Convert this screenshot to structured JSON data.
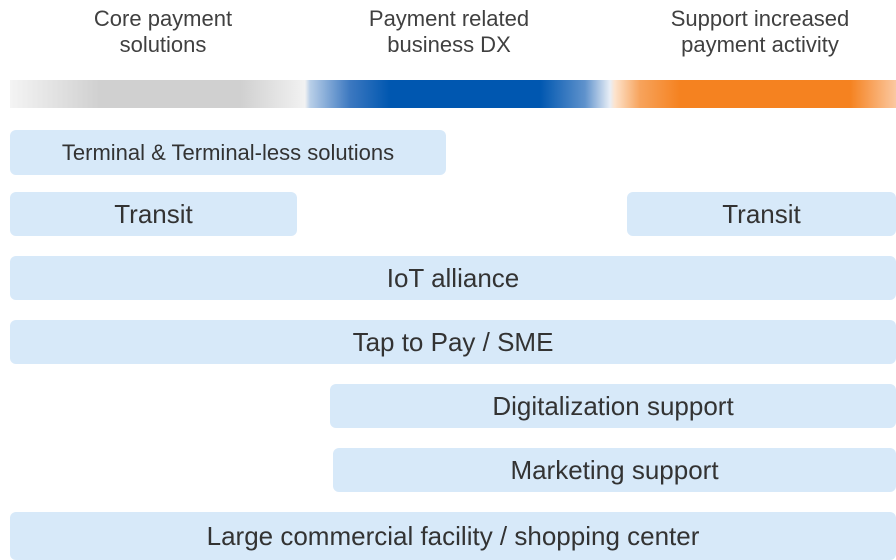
{
  "headers": [
    {
      "lines": [
        "Core payment",
        "solutions"
      ]
    },
    {
      "lines": [
        "Payment related",
        "business DX"
      ]
    },
    {
      "lines": [
        "Support increased",
        "payment activity"
      ]
    }
  ],
  "bars": [
    {
      "label": "Terminal & Terminal-less solutions"
    },
    {
      "label": "Transit"
    },
    {
      "label": "Transit"
    },
    {
      "label": "IoT alliance"
    },
    {
      "label": "Tap to Pay / SME"
    },
    {
      "label": "Digitalization support"
    },
    {
      "label": "Marketing support"
    },
    {
      "label": "Large commercial facility / shopping center"
    }
  ]
}
